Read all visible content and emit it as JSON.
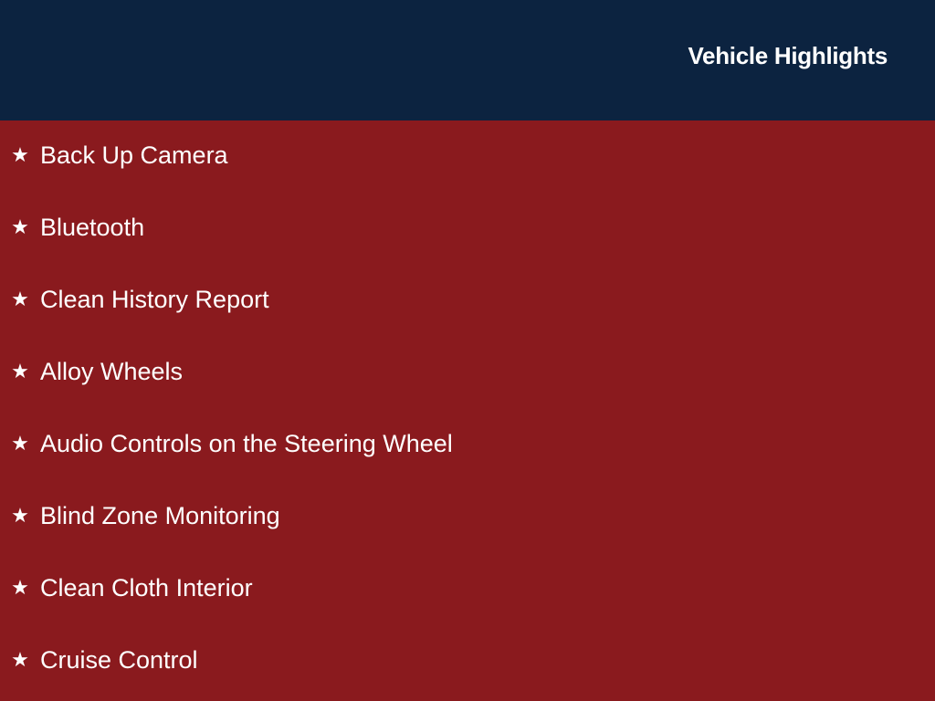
{
  "header": {
    "title": "Vehicle Highlights"
  },
  "colors": {
    "header_bg": "#0c2340",
    "body_bg": "#8a1a1e",
    "text": "#ffffff"
  },
  "highlights": {
    "icon": "star-icon",
    "items": [
      "Back Up Camera",
      "Bluetooth",
      "Clean History Report",
      "Alloy Wheels",
      "Audio Controls on the Steering Wheel",
      "Blind Zone Monitoring",
      "Clean Cloth Interior",
      "Cruise Control"
    ]
  }
}
